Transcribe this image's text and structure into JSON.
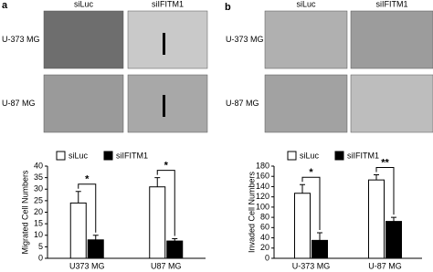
{
  "figure": {
    "panel_labels": [
      "a",
      "b"
    ],
    "image_panels": [
      {
        "columns": [
          "siLuc",
          "siIFITM1"
        ],
        "rows": [
          "U-373 MG",
          "U-87 MG"
        ]
      },
      {
        "columns": [
          "siLuc",
          "siIFITM1"
        ],
        "rows": [
          "U-373 MG",
          "U-87 MG"
        ]
      }
    ]
  },
  "chart_data": [
    {
      "type": "bar",
      "y_label": "Migrated Cell Numbers",
      "categories": [
        "U373 MG",
        "U87 MG"
      ],
      "series": [
        {
          "name": "siLuc",
          "color": "#ffffff",
          "values": [
            24,
            31
          ],
          "errors": [
            5,
            4
          ]
        },
        {
          "name": "siIFITM1",
          "color": "#000000",
          "values": [
            8,
            7.5
          ],
          "errors": [
            2,
            1
          ]
        }
      ],
      "annotations": [
        "*",
        "*"
      ],
      "ylim": [
        0,
        40
      ],
      "yticks": [
        0,
        5,
        10,
        15,
        20,
        25,
        30,
        35,
        40
      ],
      "legend": "top"
    },
    {
      "type": "bar",
      "y_label": "Invaded Cell Numbers",
      "categories": [
        "U-373 MG",
        "U-87 MG"
      ],
      "series": [
        {
          "name": "siLuc",
          "color": "#ffffff",
          "values": [
            127,
            153
          ],
          "errors": [
            17,
            10
          ]
        },
        {
          "name": "siIFITM1",
          "color": "#000000",
          "values": [
            35,
            72
          ],
          "errors": [
            15,
            8
          ]
        }
      ],
      "annotations": [
        "*",
        "**"
      ],
      "ylim": [
        0,
        180
      ],
      "yticks": [
        0,
        20,
        40,
        60,
        80,
        100,
        120,
        140,
        160,
        180
      ],
      "legend": "top"
    }
  ]
}
